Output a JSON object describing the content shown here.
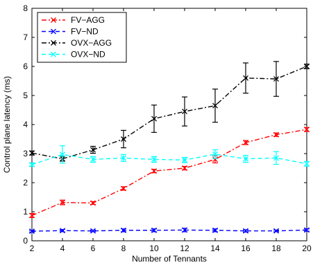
{
  "chart_data": {
    "type": "line",
    "title": "",
    "xlabel": "Number of Tennants",
    "ylabel": "Control plane latency (ms)",
    "xlim": [
      2,
      20
    ],
    "ylim": [
      0,
      8
    ],
    "xticks": [
      2,
      4,
      6,
      8,
      10,
      12,
      14,
      16,
      18,
      20
    ],
    "yticks": [
      0,
      1,
      2,
      3,
      4,
      5,
      6,
      7,
      8
    ],
    "grid": false,
    "legend_position": "top-left",
    "x": [
      2,
      4,
      6,
      8,
      10,
      12,
      14,
      16,
      18,
      20
    ],
    "series": [
      {
        "name": "FV−AGG",
        "color": "#ff0000",
        "line_style": "dash-dot",
        "marker": "x",
        "values": [
          0.87,
          1.32,
          1.3,
          1.8,
          2.4,
          2.5,
          2.8,
          3.38,
          3.65,
          3.83
        ],
        "error": [
          0.07,
          0.08,
          0.05,
          0.06,
          0.06,
          0.06,
          0.12,
          0.07,
          0.06,
          0.07
        ]
      },
      {
        "name": "FV−ND",
        "color": "#0000ff",
        "line_style": "dashed",
        "marker": "x",
        "values": [
          0.33,
          0.35,
          0.34,
          0.36,
          0.36,
          0.37,
          0.36,
          0.34,
          0.34,
          0.37
        ],
        "error": [
          0.03,
          0.04,
          0.03,
          0.05,
          0.05,
          0.06,
          0.05,
          0.04,
          0.03,
          0.04
        ]
      },
      {
        "name": "OVX−AGG",
        "color": "#000000",
        "line_style": "dash-dot",
        "marker": "x",
        "values": [
          3.02,
          2.82,
          3.13,
          3.5,
          4.2,
          4.45,
          4.65,
          5.6,
          5.57,
          6.0
        ],
        "error": [
          0.07,
          0.08,
          0.12,
          0.3,
          0.47,
          0.5,
          0.57,
          0.52,
          0.6,
          0.08
        ]
      },
      {
        "name": "OVX−ND",
        "color": "#00ffff",
        "line_style": "dashed",
        "marker": "x",
        "values": [
          2.62,
          2.97,
          2.8,
          2.85,
          2.8,
          2.78,
          2.98,
          2.82,
          2.85,
          2.65
        ],
        "error": [
          0.05,
          0.3,
          0.1,
          0.12,
          0.1,
          0.09,
          0.15,
          0.12,
          0.22,
          0.08
        ]
      }
    ]
  }
}
